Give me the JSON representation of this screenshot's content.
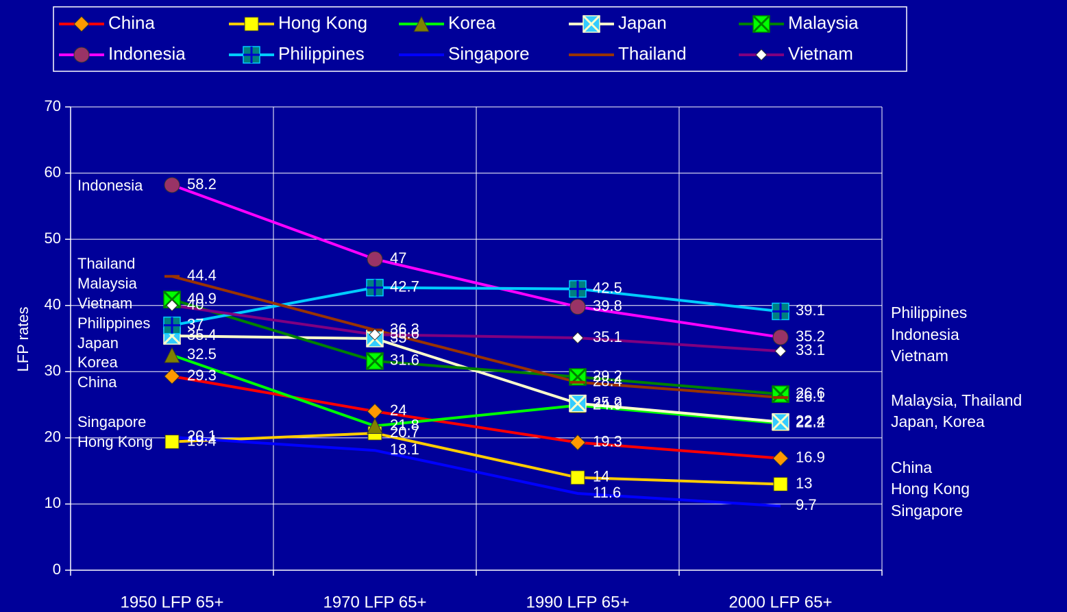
{
  "chart_data": {
    "type": "line",
    "categories": [
      "1950 LFP 65+",
      "1970 LFP 65+",
      "1990 LFP 65+",
      "2000 LFP 65+"
    ],
    "y_axis_label": "LFP rates",
    "ylim": [
      0,
      70
    ],
    "yticks": [
      0,
      10,
      20,
      30,
      40,
      50,
      60,
      70
    ],
    "grid": true,
    "series": [
      {
        "name": "China",
        "color": "#ff0000",
        "marker": "diamond",
        "marker_color": "#ff9900",
        "values": [
          29.3,
          24,
          19.3,
          16.9
        ]
      },
      {
        "name": "Hong Kong",
        "color": "#ffcc00",
        "marker": "square",
        "marker_color": "#ffff00",
        "values": [
          19.4,
          20.7,
          14,
          13
        ]
      },
      {
        "name": "Korea",
        "color": "#00ff00",
        "marker": "triangle",
        "marker_color": "#808000",
        "values": [
          32.5,
          21.8,
          24.9,
          22.2
        ]
      },
      {
        "name": "Japan",
        "color": "#ffffcc",
        "marker": "xsquare",
        "marker_color": "#33ccff",
        "values": [
          35.4,
          35.0,
          25.2,
          22.4
        ]
      },
      {
        "name": "Malaysia",
        "color": "#008000",
        "marker": "xsquare",
        "marker_color": "#00ff00",
        "values": [
          40.9,
          31.6,
          29.2,
          26.6
        ]
      },
      {
        "name": "Indonesia",
        "color": "#ff00ff",
        "marker": "circle",
        "marker_color": "#993366",
        "values": [
          58.2,
          47,
          39.8,
          35.2
        ]
      },
      {
        "name": "Philippines",
        "color": "#00ccff",
        "marker": "plussquare",
        "marker_color": "#008080",
        "values": [
          37,
          42.7,
          42.5,
          39.1
        ]
      },
      {
        "name": "Singapore",
        "color": "#0000ff",
        "marker": "none",
        "marker_color": "#0000ff",
        "values": [
          20.1,
          18.1,
          11.6,
          9.7
        ]
      },
      {
        "name": "Thailand",
        "color": "#993300",
        "marker": "dash",
        "marker_color": "#993300",
        "values": [
          44.4,
          36.3,
          28.4,
          26.1
        ]
      },
      {
        "name": "Vietnam",
        "color": "#800080",
        "marker": "smalldiamond",
        "marker_color": "#ffffff",
        "values": [
          40,
          35.6,
          35.1,
          33.1
        ]
      }
    ],
    "left_annotations": [
      "Indonesia",
      "Thailand",
      "Malaysia",
      "Vietnam",
      "Philippines",
      "Japan",
      "Korea",
      "China",
      "Singapore",
      "Hong Kong"
    ],
    "right_annotations": [
      "Philippines",
      "Indonesia",
      "Vietnam",
      "Malaysia, Thailand",
      "Japan, Korea",
      "China",
      "Hong Kong",
      "Singapore"
    ]
  }
}
